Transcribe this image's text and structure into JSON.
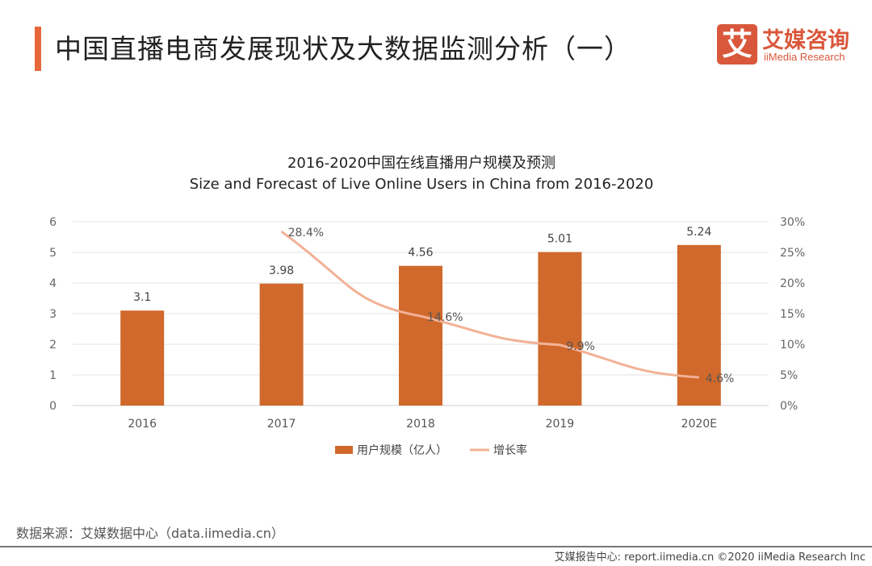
{
  "header": {
    "title": "中国直播电商发展现状及大数据监测分析（一）",
    "logo_mark": "艾",
    "logo_cn": "艾媒咨询",
    "logo_en": "iiMedia Research"
  },
  "chart_data": {
    "type": "bar+line",
    "title": "2016-2020中国在线直播用户规模及预测",
    "subtitle": "Size and Forecast of Live Online Users in China from 2016-2020",
    "categories": [
      "2016",
      "2017",
      "2018",
      "2019",
      "2020E"
    ],
    "series": [
      {
        "name": "用户规模（亿人）",
        "type": "bar",
        "axis": "left",
        "values": [
          3.1,
          3.98,
          4.56,
          5.01,
          5.24
        ],
        "labels": [
          "3.1",
          "3.98",
          "4.56",
          "5.01",
          "5.24"
        ],
        "color": "#d0692b"
      },
      {
        "name": "增长率",
        "type": "line",
        "axis": "right",
        "values": [
          null,
          28.4,
          14.6,
          9.9,
          4.6
        ],
        "labels": [
          "",
          "28.4%",
          "14.6%",
          "9.9%",
          "4.6%"
        ],
        "color": "#f2b196"
      }
    ],
    "left_axis": {
      "ylim": [
        0,
        6
      ],
      "ticks": [
        "0",
        "1",
        "2",
        "3",
        "4",
        "5",
        "6"
      ]
    },
    "right_axis": {
      "ylim": [
        0,
        30
      ],
      "ticks": [
        "0%",
        "5%",
        "10%",
        "15%",
        "20%",
        "25%",
        "30%"
      ]
    },
    "grid": true,
    "legend_placement": "bottom"
  },
  "footer": {
    "source": "数据来源：艾媒数据中心（data.iimedia.cn）",
    "copyright": "艾媒报告中心: report.iimedia.cn  ©2020  iiMedia Research Inc"
  }
}
